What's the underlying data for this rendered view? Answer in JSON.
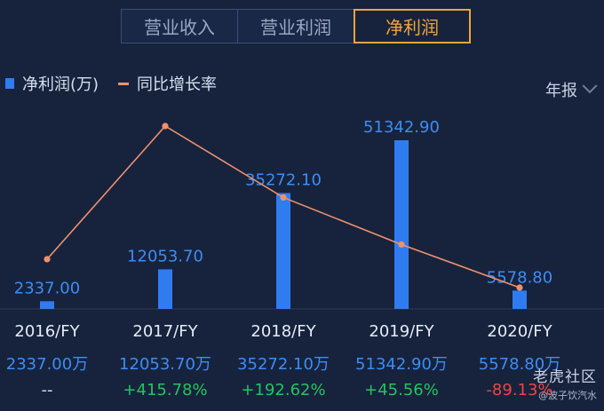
{
  "tabs": [
    {
      "label": "营业收入",
      "active": false
    },
    {
      "label": "营业利润",
      "active": false
    },
    {
      "label": "净利润",
      "active": true
    }
  ],
  "legend": {
    "bar_label": "净利润(万)",
    "line_label": "同比增长率"
  },
  "period_selector": "年报",
  "colors": {
    "bar": "#2f7cf0",
    "line": "#f0916a",
    "accent": "#f0a437",
    "positive": "#22c55e",
    "negative": "#ef4444",
    "bar_label": "#3b8df5"
  },
  "chart_data": {
    "type": "bar",
    "categories": [
      "2016/FY",
      "2017/FY",
      "2018/FY",
      "2019/FY",
      "2020/FY"
    ],
    "series": [
      {
        "name": "净利润(万)",
        "type": "bar",
        "values": [
          2337.0,
          12053.7,
          35272.1,
          51342.9,
          5578.8
        ],
        "labels": [
          "2337.00",
          "12053.70",
          "35272.10",
          "51342.90",
          "5578.80"
        ]
      },
      {
        "name": "同比增长率",
        "type": "line",
        "values": [
          null,
          415.78,
          192.62,
          45.56,
          -89.13
        ]
      }
    ],
    "value_labels": [
      "2337.00万",
      "12053.70万",
      "35272.10万",
      "51342.90万",
      "5578.80万"
    ],
    "growth_labels": [
      "--",
      "+415.78%",
      "+192.62%",
      "+45.56%",
      "-89.13%"
    ]
  },
  "watermark": {
    "site": "老虎社区",
    "user": "@波子饮汽水"
  }
}
